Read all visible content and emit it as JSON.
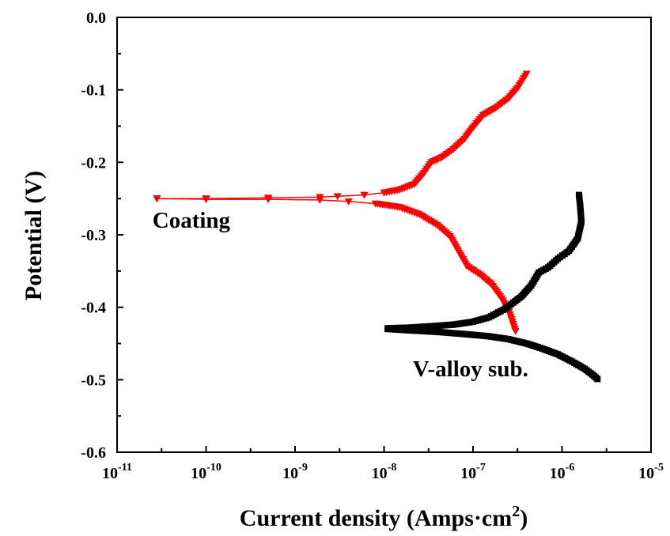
{
  "chart_data": {
    "type": "line",
    "title": "",
    "xlabel": "Current density (Amps·cm",
    "xlabel_sup": "2",
    "xlabel_close": ")",
    "ylabel": "Potential (V)",
    "xscale": "log",
    "xlim": [
      1e-11,
      1e-05
    ],
    "ylim": [
      -0.6,
      0.0
    ],
    "grid": false,
    "x_ticks": [
      {
        "base": "10",
        "exp": "-11",
        "value": 1e-11
      },
      {
        "base": "10",
        "exp": "-10",
        "value": 1e-10
      },
      {
        "base": "10",
        "exp": "-9",
        "value": 1e-09
      },
      {
        "base": "10",
        "exp": "-8",
        "value": 1e-08
      },
      {
        "base": "10",
        "exp": "-7",
        "value": 1e-07
      },
      {
        "base": "10",
        "exp": "-6",
        "value": 1e-06
      },
      {
        "base": "10",
        "exp": "-5",
        "value": 1e-05
      }
    ],
    "y_ticks": [
      {
        "label": "0.0",
        "value": 0.0
      },
      {
        "label": "-0.1",
        "value": -0.1
      },
      {
        "label": "-0.2",
        "value": -0.2
      },
      {
        "label": "-0.3",
        "value": -0.3
      },
      {
        "label": "-0.4",
        "value": -0.4
      },
      {
        "label": "-0.5",
        "value": -0.5
      },
      {
        "label": "-0.6",
        "value": -0.6
      }
    ],
    "annotations": [
      {
        "text": "Coating",
        "x": 2.5e-11,
        "y": -0.29
      },
      {
        "text": "V-alloy sub.",
        "x": 2.1e-08,
        "y": -0.495
      }
    ],
    "series": [
      {
        "name": "Coating",
        "color": "#ff0000",
        "marker": "triangle-down",
        "branches": [
          {
            "name": "anodic",
            "points": [
              [
                2.8e-11,
                -0.25
              ],
              [
                1e-10,
                -0.25
              ],
              [
                5e-10,
                -0.249
              ],
              [
                1.9e-09,
                -0.248
              ],
              [
                3e-09,
                -0.247
              ],
              [
                6e-09,
                -0.245
              ],
              [
                1e-08,
                -0.242
              ],
              [
                1.5e-08,
                -0.238
              ],
              [
                2.2e-08,
                -0.23
              ],
              [
                2.8e-08,
                -0.215
              ],
              [
                3.4e-08,
                -0.2
              ],
              [
                4.5e-08,
                -0.193
              ],
              [
                6e-08,
                -0.182
              ],
              [
                8e-08,
                -0.168
              ],
              [
                1e-07,
                -0.152
              ],
              [
                1.3e-07,
                -0.135
              ],
              [
                1.8e-07,
                -0.125
              ],
              [
                2.5e-07,
                -0.112
              ],
              [
                3.2e-07,
                -0.097
              ],
              [
                4e-07,
                -0.078
              ]
            ]
          },
          {
            "name": "cathodic",
            "points": [
              [
                2.8e-11,
                -0.25
              ],
              [
                1e-10,
                -0.251
              ],
              [
                5e-10,
                -0.251
              ],
              [
                1.9e-09,
                -0.252
              ],
              [
                4e-09,
                -0.254
              ],
              [
                8e-09,
                -0.257
              ],
              [
                1.5e-08,
                -0.262
              ],
              [
                2.5e-08,
                -0.272
              ],
              [
                4e-08,
                -0.287
              ],
              [
                5.5e-08,
                -0.302
              ],
              [
                7e-08,
                -0.325
              ],
              [
                8.5e-08,
                -0.343
              ],
              [
                1.2e-07,
                -0.355
              ],
              [
                1.6e-07,
                -0.368
              ],
              [
                2.1e-07,
                -0.388
              ],
              [
                2.6e-07,
                -0.41
              ],
              [
                3e-07,
                -0.433
              ]
            ]
          }
        ]
      },
      {
        "name": "V-alloy sub.",
        "color": "#000000",
        "marker": "square",
        "branches": [
          {
            "name": "anodic",
            "points": [
              [
                1.1e-08,
                -0.429
              ],
              [
                2e-08,
                -0.428
              ],
              [
                3.5e-08,
                -0.426
              ],
              [
                6e-08,
                -0.424
              ],
              [
                1e-07,
                -0.42
              ],
              [
                1.5e-07,
                -0.414
              ],
              [
                2.3e-07,
                -0.402
              ],
              [
                3.5e-07,
                -0.385
              ],
              [
                4.5e-07,
                -0.37
              ],
              [
                5.5e-07,
                -0.352
              ],
              [
                7e-07,
                -0.345
              ],
              [
                9e-07,
                -0.333
              ],
              [
                1.2e-06,
                -0.322
              ],
              [
                1.5e-06,
                -0.305
              ],
              [
                1.65e-06,
                -0.282
              ],
              [
                1.6e-06,
                -0.26
              ],
              [
                1.55e-06,
                -0.245
              ]
            ]
          },
          {
            "name": "cathodic",
            "points": [
              [
                1.1e-08,
                -0.43
              ],
              [
                2e-08,
                -0.432
              ],
              [
                4e-08,
                -0.434
              ],
              [
                8e-08,
                -0.437
              ],
              [
                1.5e-07,
                -0.44
              ],
              [
                2.5e-07,
                -0.444
              ],
              [
                4e-07,
                -0.45
              ],
              [
                6e-07,
                -0.457
              ],
              [
                9e-07,
                -0.465
              ],
              [
                1.3e-06,
                -0.475
              ],
              [
                1.8e-06,
                -0.485
              ],
              [
                2.2e-06,
                -0.493
              ],
              [
                2.5e-06,
                -0.499
              ]
            ]
          }
        ]
      }
    ]
  }
}
